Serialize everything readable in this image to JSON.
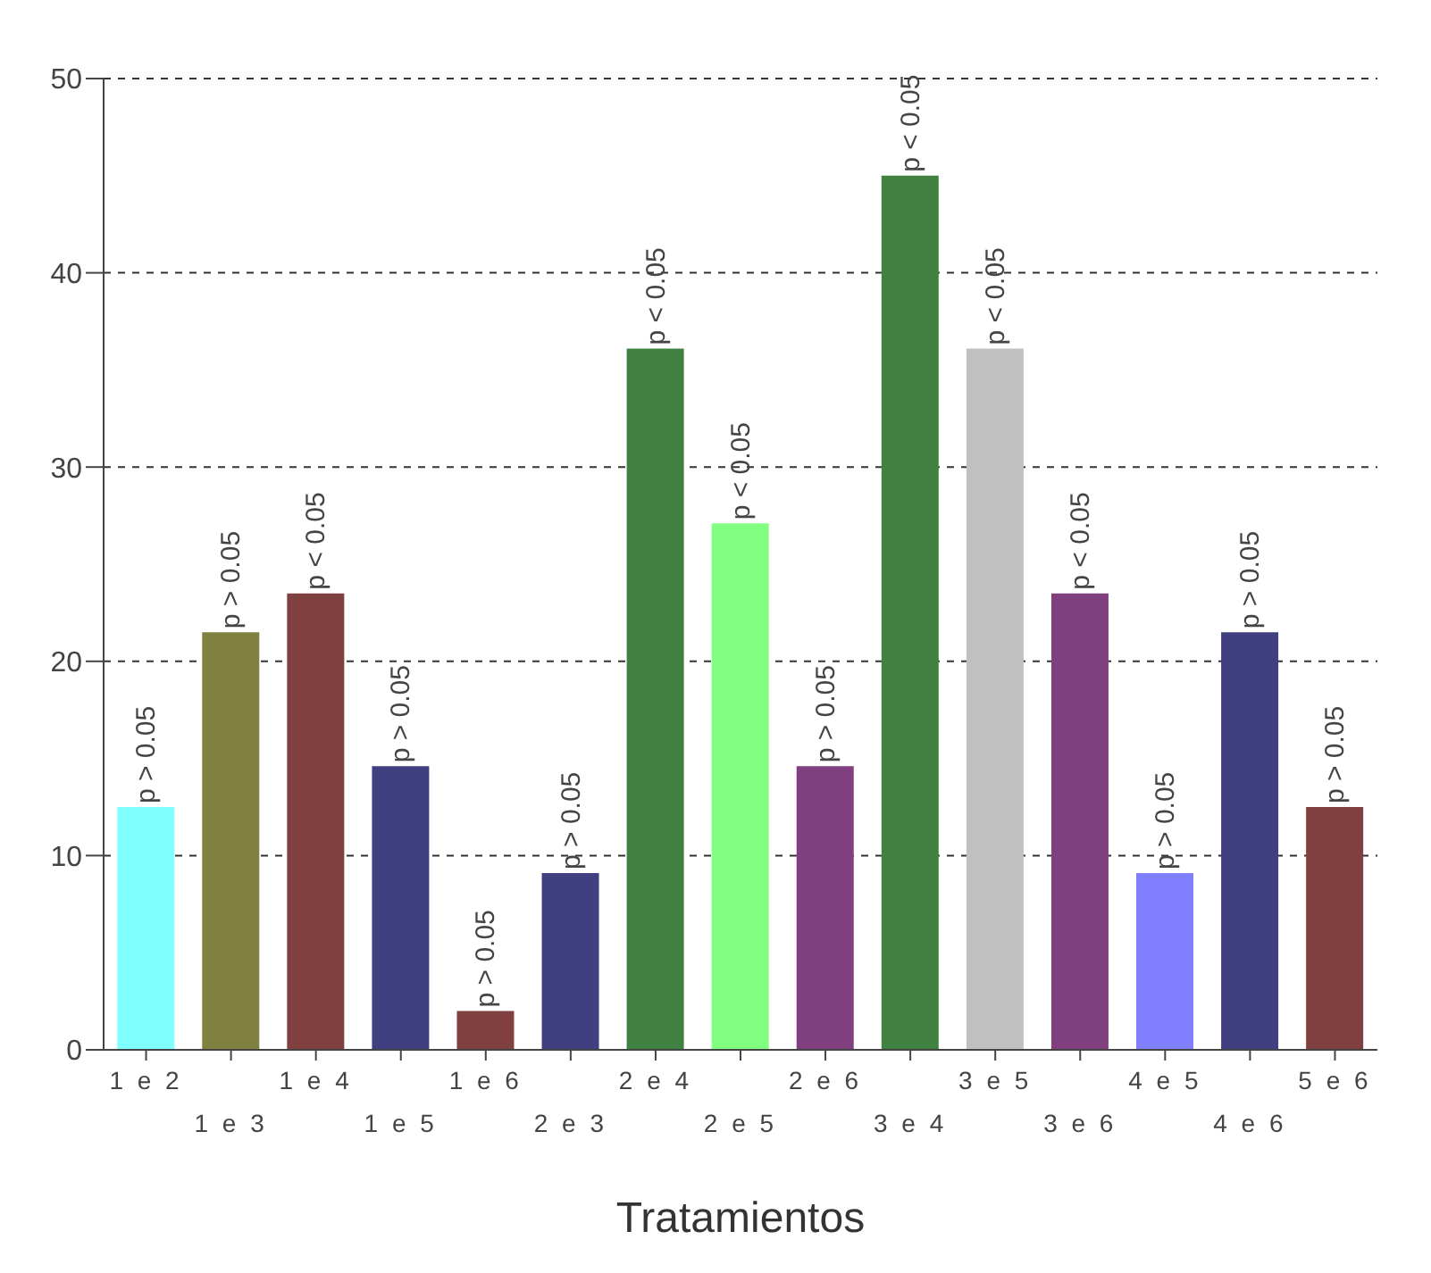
{
  "chart_data": {
    "type": "bar",
    "xlabel": "Tratamientos",
    "categories": [
      "1 e 2",
      "1 e 3",
      "1 e 4",
      "1 e 5",
      "1 e 6",
      "2 e 3",
      "2 e 4",
      "2 e 5",
      "2 e 6",
      "3 e 4",
      "3 e 5",
      "3 e 6",
      "4 e 5",
      "4 e 6",
      "5 e 6"
    ],
    "values": [
      12.5,
      21.5,
      23.5,
      14.6,
      2.0,
      9.1,
      36.1,
      27.1,
      14.6,
      45.0,
      36.1,
      23.5,
      9.1,
      21.5,
      12.5
    ],
    "colors": [
      "#80ffff",
      "#808040",
      "#804040",
      "#404080",
      "#804040",
      "#404080",
      "#408040",
      "#80ff80",
      "#804080",
      "#408040",
      "#c0c0c0",
      "#804080",
      "#8080ff",
      "#404080",
      "#804040"
    ],
    "value_labels": [
      "p > 0.05",
      "p > 0.05",
      "p < 0.05",
      "p > 0.05",
      "p > 0.05",
      "p > 0.05",
      "p < 0.05",
      "p < 0.05",
      "p > 0.05",
      "p < 0.05",
      "p < 0.05",
      "p < 0.05",
      "p > 0.05",
      "p > 0.05",
      "p > 0.05"
    ],
    "ylim": [
      0,
      50
    ],
    "yticks": [
      0,
      10,
      20,
      30,
      40,
      50
    ],
    "grid": "y",
    "legend": false
  }
}
